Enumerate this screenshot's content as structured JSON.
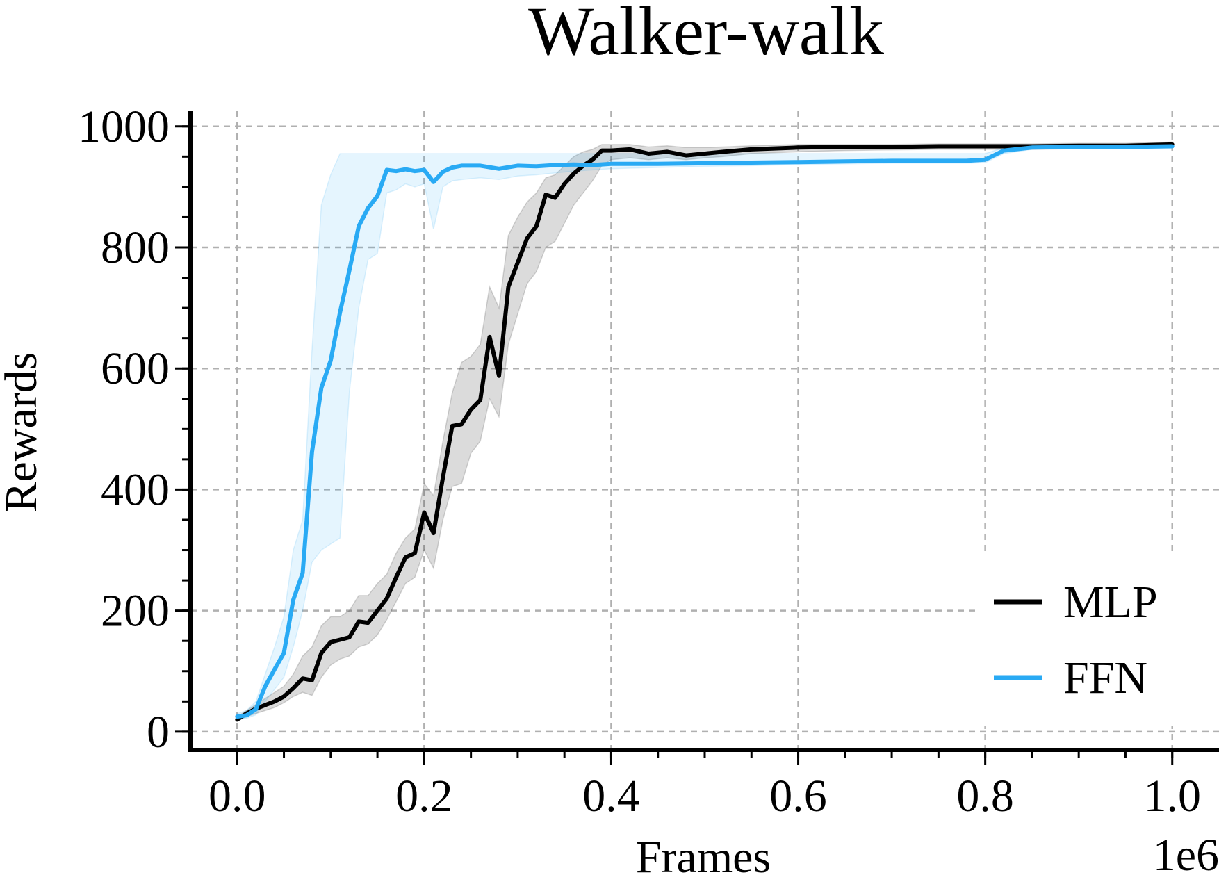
{
  "chart_data": {
    "type": "line",
    "title": "Walker-walk",
    "xlabel": "Frames",
    "ylabel": "Rewards",
    "x_offset_label": "1e6",
    "xlim": [
      -0.05,
      1.05
    ],
    "ylim": [
      -30,
      1025
    ],
    "x_ticks": [
      0.0,
      0.2,
      0.4,
      0.6,
      0.8,
      1.0
    ],
    "x_tick_labels": [
      "0.0",
      "0.2",
      "0.4",
      "0.6",
      "0.8",
      "1.0"
    ],
    "y_ticks": [
      0,
      200,
      400,
      600,
      800,
      1000
    ],
    "y_tick_labels": [
      "0",
      "200",
      "400",
      "600",
      "800",
      "1000"
    ],
    "grid": true,
    "legend_position": "bottom-right",
    "series": [
      {
        "name": "MLP",
        "color": "#000000",
        "x": [
          0.0,
          0.01,
          0.02,
          0.03,
          0.04,
          0.05,
          0.06,
          0.07,
          0.08,
          0.09,
          0.1,
          0.11,
          0.12,
          0.13,
          0.14,
          0.15,
          0.16,
          0.17,
          0.18,
          0.19,
          0.2,
          0.21,
          0.22,
          0.23,
          0.24,
          0.25,
          0.26,
          0.27,
          0.28,
          0.29,
          0.3,
          0.31,
          0.32,
          0.33,
          0.34,
          0.35,
          0.36,
          0.37,
          0.38,
          0.39,
          0.4,
          0.42,
          0.44,
          0.46,
          0.48,
          0.5,
          0.52,
          0.55,
          0.6,
          0.65,
          0.7,
          0.75,
          0.8,
          0.85,
          0.9,
          0.95,
          1.0
        ],
        "values": [
          20,
          30,
          38,
          44,
          50,
          58,
          72,
          88,
          85,
          130,
          148,
          152,
          156,
          182,
          180,
          200,
          220,
          255,
          288,
          295,
          362,
          328,
          420,
          505,
          508,
          532,
          548,
          652,
          588,
          735,
          775,
          815,
          835,
          887,
          882,
          905,
          922,
          935,
          945,
          960,
          960,
          962,
          955,
          958,
          952,
          955,
          958,
          962,
          965,
          966,
          966,
          967,
          967,
          967,
          968,
          968,
          970
        ],
        "lower": [
          18,
          25,
          30,
          35,
          40,
          48,
          58,
          65,
          60,
          90,
          110,
          120,
          125,
          140,
          145,
          160,
          185,
          215,
          245,
          255,
          300,
          270,
          350,
          405,
          410,
          460,
          480,
          550,
          520,
          640,
          690,
          740,
          760,
          800,
          810,
          840,
          870,
          890,
          910,
          935,
          945,
          948,
          945,
          948,
          945,
          948,
          950,
          955,
          958,
          960,
          961,
          962,
          962,
          962,
          963,
          964,
          966
        ],
        "upper": [
          25,
          35,
          45,
          55,
          65,
          75,
          95,
          125,
          140,
          175,
          190,
          190,
          200,
          225,
          225,
          245,
          260,
          295,
          320,
          335,
          410,
          390,
          480,
          560,
          610,
          620,
          640,
          735,
          700,
          820,
          850,
          875,
          890,
          915,
          920,
          935,
          950,
          958,
          962,
          970,
          970,
          970,
          966,
          968,
          965,
          965,
          966,
          968,
          970,
          970,
          970,
          971,
          971,
          971,
          972,
          972,
          974
        ]
      },
      {
        "name": "FFN",
        "color": "#29aaf4",
        "x": [
          0.0,
          0.01,
          0.02,
          0.03,
          0.04,
          0.05,
          0.06,
          0.07,
          0.08,
          0.09,
          0.1,
          0.11,
          0.12,
          0.13,
          0.14,
          0.15,
          0.16,
          0.17,
          0.18,
          0.19,
          0.2,
          0.21,
          0.22,
          0.23,
          0.24,
          0.26,
          0.28,
          0.3,
          0.32,
          0.34,
          0.36,
          0.38,
          0.4,
          0.45,
          0.5,
          0.55,
          0.6,
          0.65,
          0.7,
          0.75,
          0.78,
          0.8,
          0.82,
          0.85,
          0.9,
          0.95,
          1.0
        ],
        "values": [
          25,
          27,
          37,
          75,
          103,
          130,
          218,
          262,
          462,
          568,
          613,
          693,
          762,
          835,
          865,
          885,
          928,
          926,
          929,
          926,
          928,
          908,
          925,
          932,
          935,
          935,
          930,
          935,
          934,
          936,
          937,
          936,
          938,
          938,
          939,
          940,
          941,
          942,
          943,
          943,
          943,
          945,
          960,
          965,
          966,
          966,
          967
        ],
        "lower": [
          20,
          22,
          28,
          50,
          70,
          90,
          140,
          200,
          280,
          300,
          310,
          320,
          560,
          700,
          780,
          790,
          890,
          895,
          905,
          900,
          905,
          830,
          900,
          910,
          912,
          915,
          912,
          918,
          920,
          923,
          926,
          928,
          930,
          932,
          934,
          935,
          937,
          938,
          939,
          939,
          939,
          940,
          955,
          962,
          964,
          964,
          965
        ],
        "upper": [
          30,
          35,
          50,
          95,
          140,
          190,
          300,
          350,
          630,
          870,
          920,
          955,
          955,
          955,
          955,
          955,
          955,
          955,
          955,
          955,
          955,
          955,
          955,
          955,
          955,
          955,
          955,
          955,
          955,
          955,
          955,
          955,
          955,
          955,
          955,
          955,
          955,
          955,
          955,
          955,
          955,
          955,
          965,
          968,
          969,
          969,
          970
        ]
      }
    ]
  }
}
